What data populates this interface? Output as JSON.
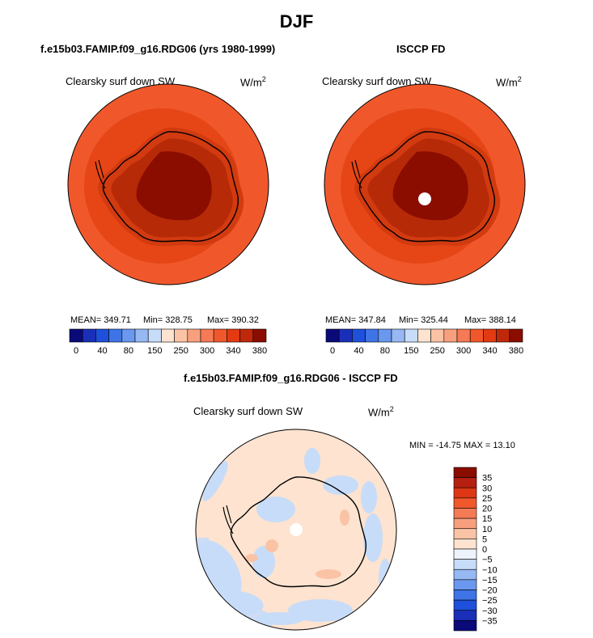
{
  "page": {
    "title": "DJF"
  },
  "chart_data": [
    {
      "type": "heatmap",
      "projection": "south polar stereographic",
      "title": "f.e15b03.FAMIP.f09_g16.RDG06 (yrs 1980-1999)",
      "variable": "Clearsky surf down SW",
      "units": "W/m",
      "units_exp": "2",
      "stats": {
        "mean": "MEAN= 349.71",
        "min": "Min= 328.75",
        "max": "Max= 390.32"
      },
      "levels": [
        0,
        40,
        80,
        150,
        250,
        300,
        340,
        380
      ],
      "value_ranges": {
        "ocean_outer": "~320-340",
        "coast": "~340-360",
        "interior": "~360-380",
        "plateau": ">380"
      }
    },
    {
      "type": "heatmap",
      "projection": "south polar stereographic",
      "title": "ISCCP FD",
      "variable": "Clearsky surf down SW",
      "units": "W/m",
      "units_exp": "2",
      "stats": {
        "mean": "MEAN= 347.84",
        "min": "Min= 325.44",
        "max": "Max= 388.14"
      },
      "levels": [
        0,
        40,
        80,
        150,
        250,
        300,
        340,
        380
      ],
      "value_ranges": {
        "ocean_outer": "~320-340",
        "coast": "~340-360",
        "interior": "~360-380",
        "plateau": ">380"
      }
    },
    {
      "type": "heatmap",
      "projection": "south polar stereographic",
      "title": "f.e15b03.FAMIP.f09_g16.RDG06 - ISCCP FD",
      "variable": "Clearsky surf down SW",
      "units": "W/m",
      "units_exp": "2",
      "stats": {
        "minmax": "MIN = -14.75 MAX =  13.10"
      },
      "levels": [
        35,
        30,
        25,
        20,
        15,
        10,
        5,
        0,
        -5,
        -10,
        -15,
        -20,
        -25,
        -30,
        -35
      ],
      "level_labels": [
        "35",
        "30",
        "25",
        "20",
        "15",
        "10",
        "5",
        "0",
        "−5",
        "−10",
        "−15",
        "−20",
        "−25",
        "−30",
        "−35"
      ],
      "value_ranges": {
        "dominant": "0 to 5",
        "patches": "-5 to 0",
        "isolated": "5 to 15"
      }
    }
  ],
  "colors": {
    "seq": [
      "#0a0a7a",
      "#1a2fb8",
      "#1e50dc",
      "#3e74e6",
      "#6a98ee",
      "#96b8f3",
      "#c7dcf8",
      "#fde3d0",
      "#fbc3a6",
      "#f8a07e",
      "#f47b55",
      "#f0582c",
      "#e23b12",
      "#c0280a",
      "#8a0d00"
    ],
    "div": [
      "#8a0d00",
      "#b52010",
      "#de3715",
      "#f0582c",
      "#f47b55",
      "#f8a07e",
      "#fbc3a6",
      "#fde3d0",
      "#eef3fb",
      "#c7dcf8",
      "#96b8f3",
      "#6a98ee",
      "#3e74e6",
      "#1e50dc",
      "#1a2fb8",
      "#0a0a7a"
    ],
    "ocean_outer": "#f0582c",
    "ocean_inner": "#e64616",
    "coast_band": "#d23a10",
    "ice_mid": "#b62a08",
    "plateau": "#8a0d00",
    "diff_bg": "#fde3d0",
    "diff_neg": "#c7dcf8",
    "diff_pos": "#fbc3a6"
  }
}
